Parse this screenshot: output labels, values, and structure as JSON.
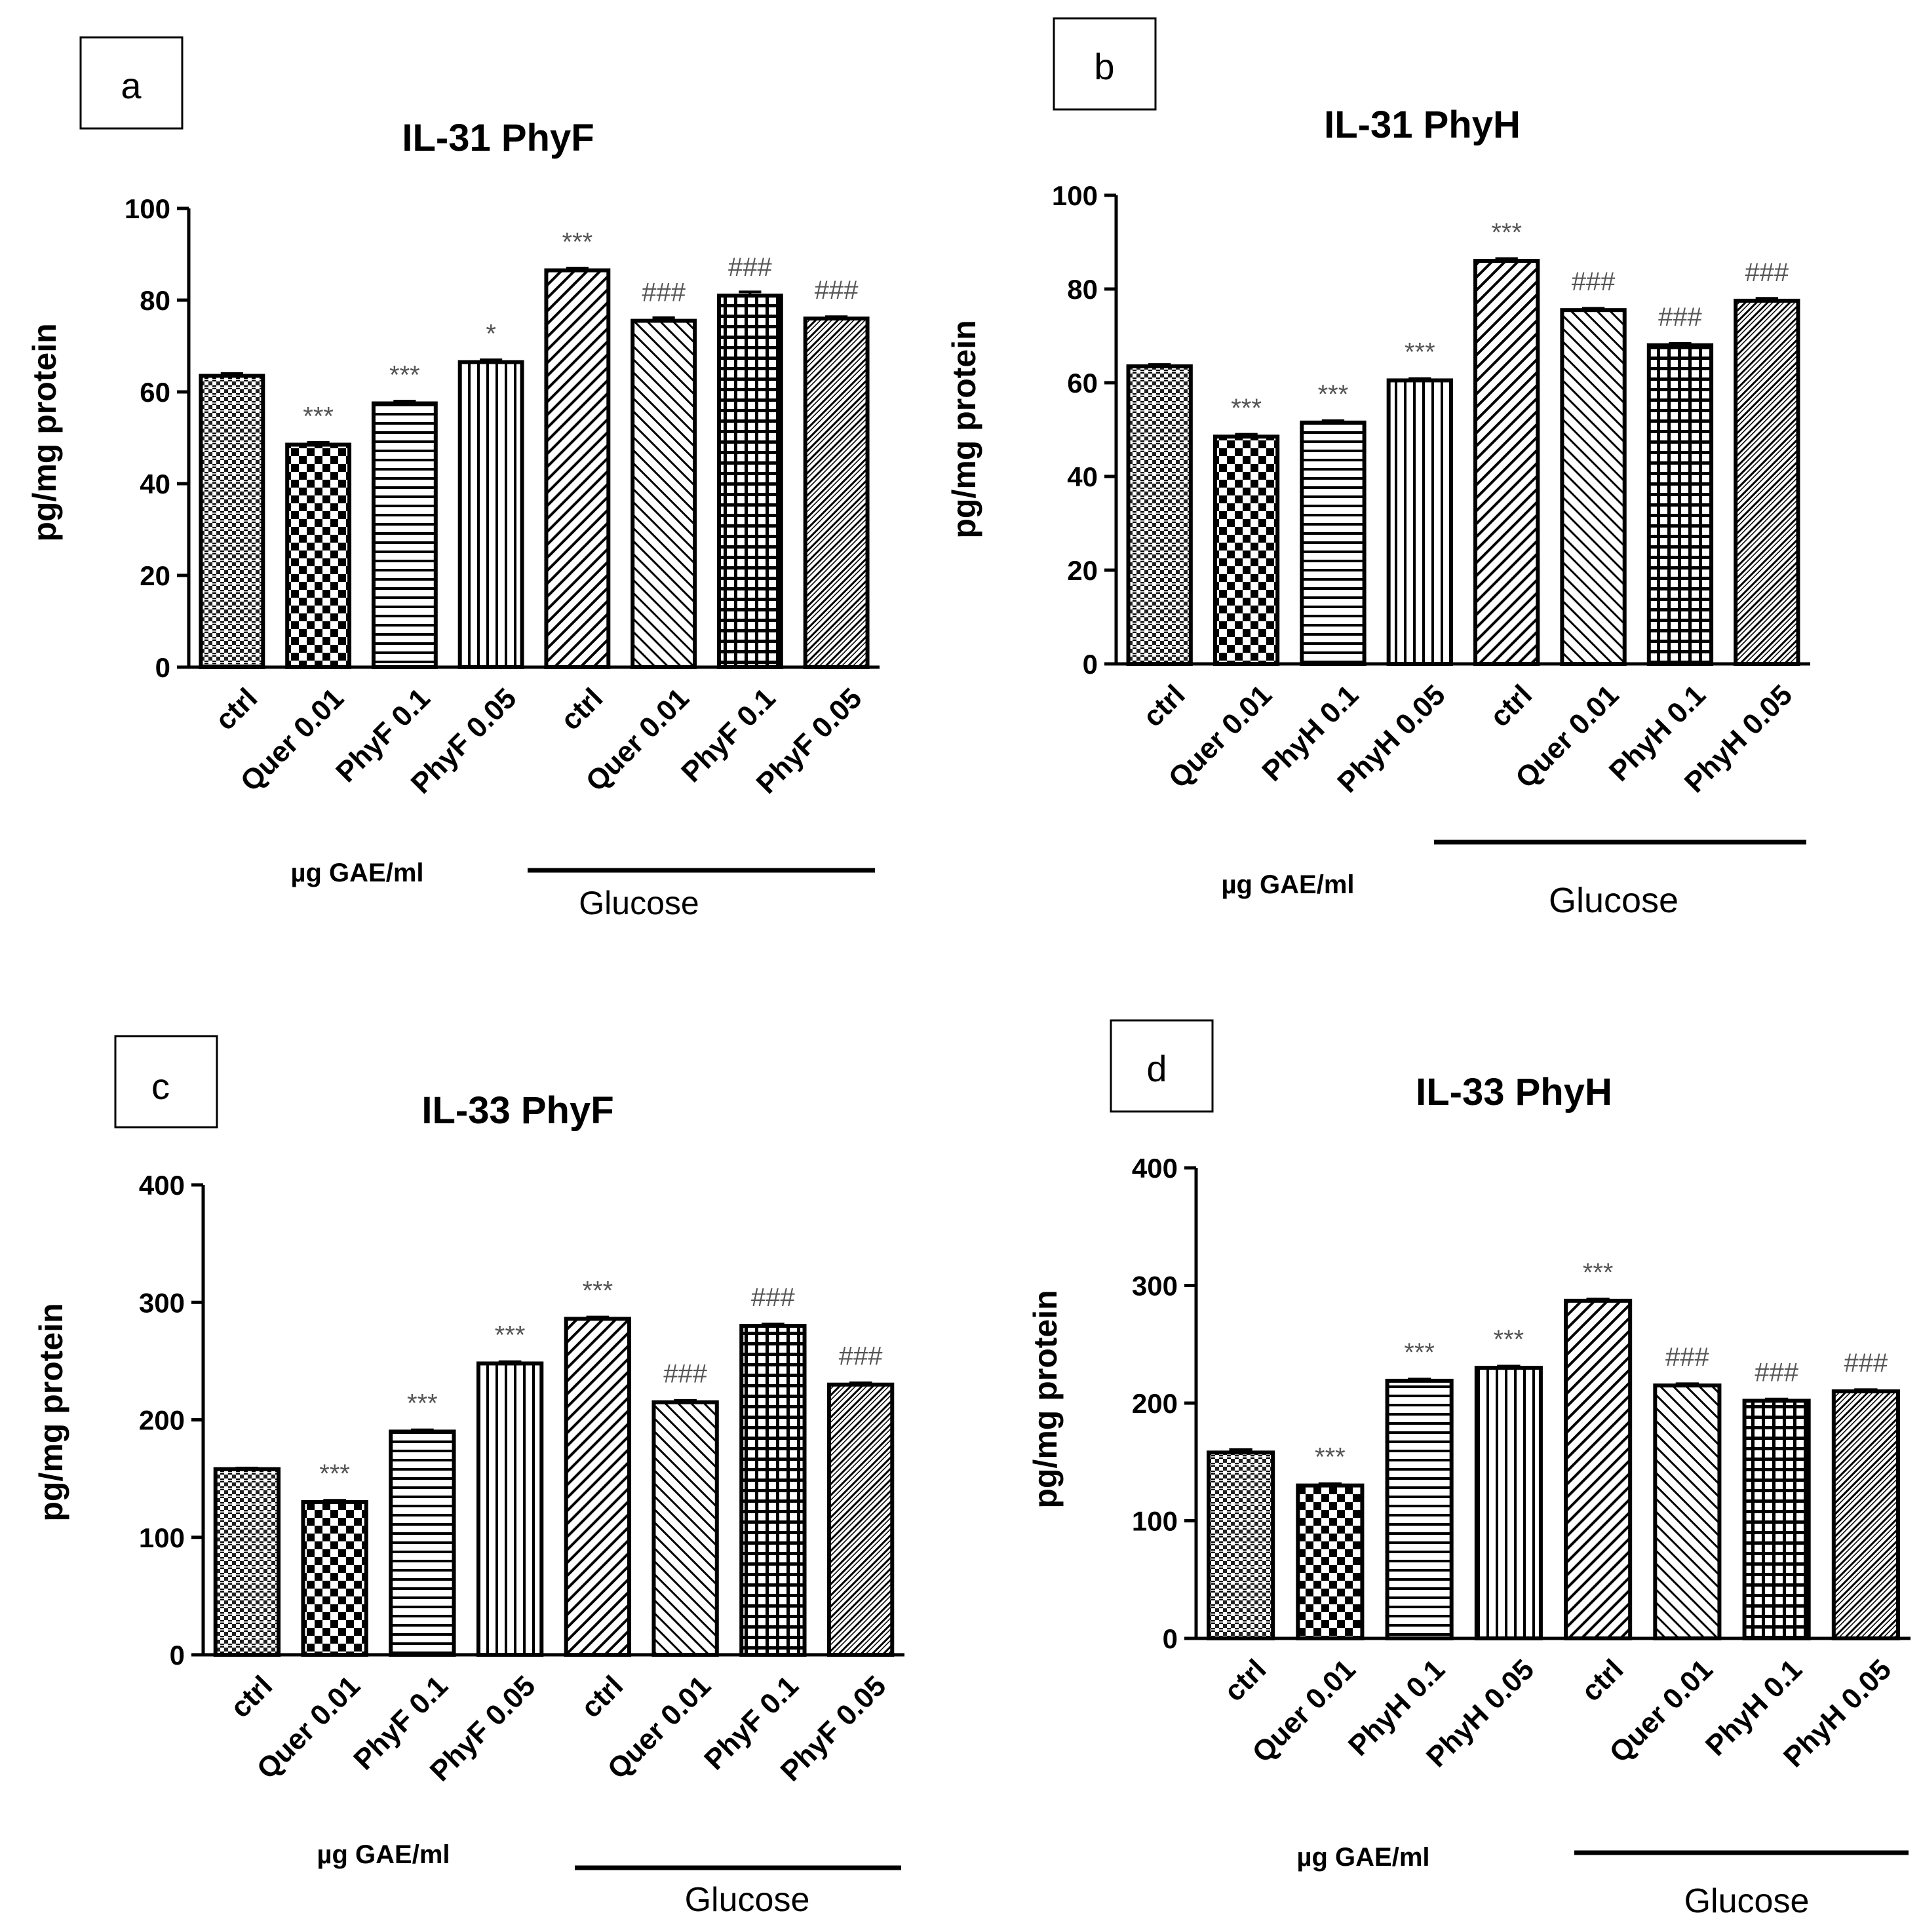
{
  "chart_data": [
    {
      "type": "bar",
      "panel": "a",
      "title": "IL-31 PhyF",
      "ylabel": "pg/mg protein",
      "ylim": [
        0,
        100
      ],
      "yticks": [
        "0",
        "20",
        "40",
        "60",
        "80",
        "100"
      ],
      "categories": [
        "ctrl",
        "Quer 0.01",
        "PhyF 0.1",
        "PhyF 0.05",
        "ctrl",
        "Quer 0.01",
        "PhyF 0.1",
        "PhyF 0.05"
      ],
      "values": [
        63.5,
        48.5,
        57.5,
        66.5,
        86.5,
        75.5,
        81,
        76
      ],
      "errors": [
        0.5,
        0.5,
        0.5,
        0.5,
        0.5,
        0.7,
        0.8,
        0.4
      ],
      "annotations": [
        "",
        "***",
        "***",
        "*",
        "***",
        "###",
        "###",
        "###"
      ],
      "unit_label": "µg GAE/ml",
      "group_label": "Glucose"
    },
    {
      "type": "bar",
      "panel": "b",
      "title": "IL-31 PhyH",
      "ylabel": "pg/mg protein",
      "ylim": [
        0,
        100
      ],
      "yticks": [
        "0",
        "20",
        "40",
        "60",
        "80",
        "100"
      ],
      "categories": [
        "ctrl",
        "Quer 0.01",
        "PhyH 0.1",
        "PhyH 0.05",
        "ctrl",
        "Quer 0.01",
        "PhyH 0.1",
        "PhyH 0.05"
      ],
      "values": [
        63.5,
        48.5,
        51.5,
        60.5,
        86,
        75.5,
        68,
        77.5
      ],
      "errors": [
        0.4,
        0.5,
        0.4,
        0.4,
        0.5,
        0.4,
        0.4,
        0.5
      ],
      "annotations": [
        "",
        "***",
        "***",
        "***",
        "***",
        "###",
        "###",
        "###"
      ],
      "unit_label": "µg GAE/ml",
      "group_label": "Glucose"
    },
    {
      "type": "bar",
      "panel": "c",
      "title": "IL-33 PhyF",
      "ylabel": "pg/mg protein",
      "ylim": [
        0,
        400
      ],
      "yticks": [
        "0",
        "100",
        "200",
        "300",
        "400"
      ],
      "categories": [
        "ctrl",
        "Quer 0.01",
        "PhyF 0.1",
        "PhyF 0.05",
        "ctrl",
        "Quer 0.01",
        "PhyF 0.1",
        "PhyF 0.05"
      ],
      "values": [
        158,
        130,
        190,
        248,
        286,
        215,
        280,
        230
      ],
      "errors": [
        1,
        1.5,
        1.5,
        1.5,
        1.5,
        1.5,
        1.5,
        1.5
      ],
      "annotations": [
        "",
        "***",
        "***",
        "***",
        "***",
        "###",
        "###",
        "###"
      ],
      "unit_label": "µg GAE/ml",
      "group_label": "Glucose"
    },
    {
      "type": "bar",
      "panel": "d",
      "title": "IL-33 PhyH",
      "ylabel": "pg/mg protein",
      "ylim": [
        0,
        400
      ],
      "yticks": [
        "0",
        "100",
        "200",
        "300",
        "400"
      ],
      "categories": [
        "ctrl",
        "Quer 0.01",
        "PhyH 0.1",
        "PhyH 0.05",
        "ctrl",
        "Quer 0.01",
        "PhyH 0.1",
        "PhyH 0.05"
      ],
      "values": [
        158,
        130,
        219,
        230,
        287,
        215,
        202,
        210
      ],
      "errors": [
        2.5,
        1.5,
        1.5,
        1.5,
        1.5,
        1.5,
        1.5,
        1.5
      ],
      "annotations": [
        "",
        "***",
        "***",
        "***",
        "***",
        "###",
        "###",
        "###"
      ],
      "unit_label": "µg GAE/ml",
      "group_label": "Glucose"
    }
  ]
}
